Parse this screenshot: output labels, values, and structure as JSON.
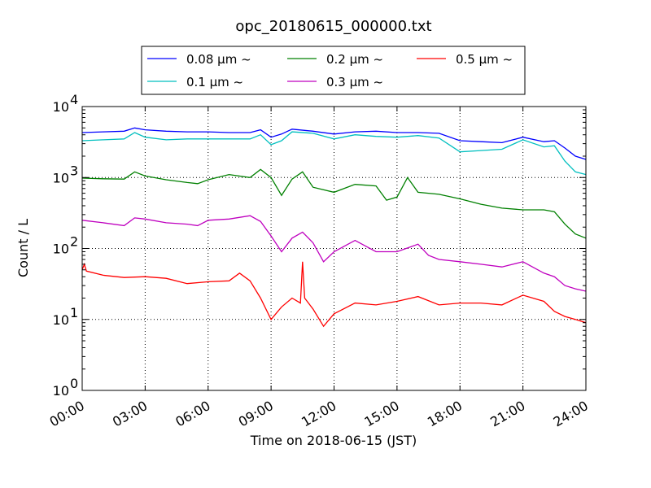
{
  "chart_data": {
    "type": "line",
    "title": "opc_20180615_000000.txt",
    "xlabel": "Time on 2018-06-15 (JST)",
    "ylabel": "Count / L",
    "yscale": "log",
    "ylim": [
      1,
      10000
    ],
    "xlim": [
      0,
      24
    ],
    "x_ticks": [
      "00:00",
      "03:00",
      "06:00",
      "09:00",
      "12:00",
      "15:00",
      "18:00",
      "21:00",
      "24:00"
    ],
    "y_ticks": [
      {
        "base": "10",
        "exp": "0"
      },
      {
        "base": "10",
        "exp": "1"
      },
      {
        "base": "10",
        "exp": "2"
      },
      {
        "base": "10",
        "exp": "3"
      },
      {
        "base": "10",
        "exp": "4"
      }
    ],
    "grid": true,
    "legend_position": "top-center",
    "series": [
      {
        "name": "0.08 μm ~",
        "color": "#0000ff",
        "x": [
          0,
          1,
          2,
          2.5,
          3,
          4,
          5,
          6,
          7,
          8,
          8.5,
          9,
          9.5,
          10,
          11,
          12,
          13,
          14,
          15,
          16,
          17,
          18,
          19,
          20,
          21,
          22,
          22.5,
          23,
          23.5,
          24
        ],
        "y": [
          4300,
          4400,
          4500,
          5000,
          4700,
          4500,
          4400,
          4400,
          4300,
          4300,
          4700,
          3700,
          4100,
          4800,
          4500,
          4100,
          4400,
          4500,
          4300,
          4300,
          4200,
          3300,
          3200,
          3100,
          3700,
          3200,
          3300,
          2600,
          2000,
          1800
        ]
      },
      {
        "name": "0.1 μm ~",
        "color": "#00bfbf",
        "x": [
          0,
          1,
          2,
          2.5,
          3,
          4,
          5,
          6,
          7,
          8,
          8.5,
          9,
          9.5,
          10,
          11,
          12,
          13,
          14,
          15,
          16,
          17,
          18,
          19,
          20,
          21,
          22,
          22.5,
          23,
          23.5,
          24
        ],
        "y": [
          3300,
          3400,
          3500,
          4300,
          3700,
          3400,
          3500,
          3500,
          3500,
          3500,
          4000,
          2900,
          3300,
          4400,
          4200,
          3500,
          4000,
          3800,
          3700,
          3900,
          3600,
          2300,
          2400,
          2500,
          3400,
          2700,
          2800,
          1700,
          1200,
          1100
        ]
      },
      {
        "name": "0.2 μm ~",
        "color": "#008000",
        "x": [
          0,
          1,
          2,
          2.5,
          3,
          4,
          5,
          5.5,
          6,
          7,
          8,
          8.5,
          9,
          9.5,
          10,
          10.5,
          11,
          12,
          13,
          14,
          14.5,
          15,
          15.5,
          16,
          17,
          18,
          19,
          20,
          21,
          22,
          22.5,
          23,
          23.5,
          24
        ],
        "y": [
          980,
          960,
          950,
          1200,
          1050,
          930,
          850,
          820,
          930,
          1100,
          1000,
          1300,
          1000,
          560,
          950,
          1200,
          730,
          620,
          800,
          760,
          480,
          530,
          1000,
          620,
          580,
          500,
          420,
          370,
          350,
          350,
          330,
          220,
          160,
          140
        ]
      },
      {
        "name": "0.3 μm ~",
        "color": "#bf00bf",
        "x": [
          0,
          1,
          2,
          2.5,
          3,
          4,
          5,
          5.5,
          6,
          7,
          8,
          8.5,
          9,
          9.5,
          10,
          10.5,
          11,
          11.5,
          12,
          13,
          14,
          15,
          16,
          16.5,
          17,
          18,
          19,
          20,
          21,
          22,
          22.5,
          23,
          23.5,
          24
        ],
        "y": [
          250,
          230,
          210,
          270,
          260,
          230,
          220,
          210,
          250,
          260,
          290,
          240,
          150,
          90,
          140,
          170,
          120,
          65,
          90,
          130,
          90,
          90,
          115,
          80,
          70,
          65,
          60,
          55,
          65,
          45,
          40,
          30,
          27,
          25
        ]
      },
      {
        "name": "0.5 μm ~",
        "color": "#ff0000",
        "x": [
          0,
          0.1,
          0.2,
          1,
          2,
          3,
          4,
          5,
          6,
          7,
          7.5,
          8,
          8.5,
          9,
          9.5,
          10,
          10.4,
          10.5,
          10.6,
          11,
          11.5,
          12,
          13,
          14,
          15,
          16,
          17,
          18,
          19,
          20,
          21,
          22,
          22.5,
          23,
          23.5,
          24
        ],
        "y": [
          50,
          60,
          48,
          42,
          39,
          40,
          38,
          32,
          34,
          35,
          45,
          35,
          20,
          10,
          15,
          20,
          17,
          65,
          20,
          14,
          8,
          12,
          17,
          16,
          18,
          21,
          16,
          17,
          17,
          16,
          22,
          18,
          13,
          11,
          10,
          9
        ]
      }
    ]
  }
}
